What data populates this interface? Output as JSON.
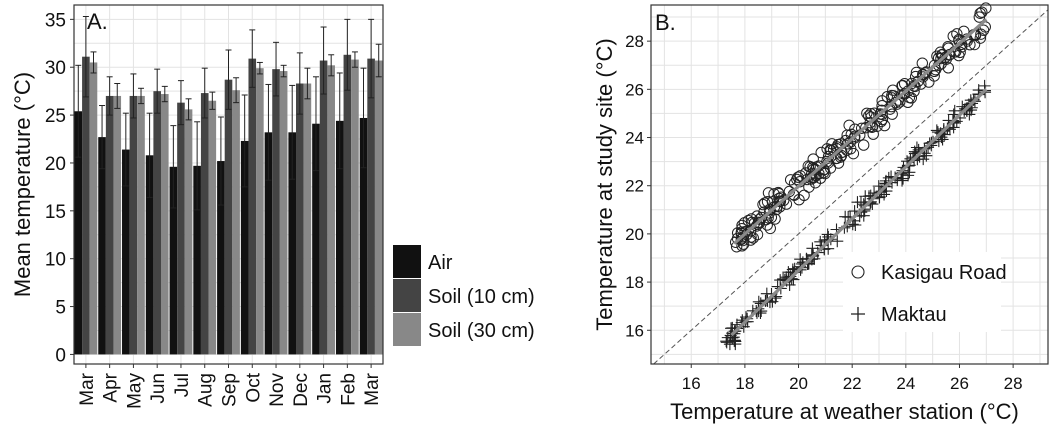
{
  "chart_data": [
    {
      "type": "bar",
      "panel_label": "A.",
      "ylabel": "Mean temperature (°C)",
      "xlabel": "",
      "categories": [
        "Mar",
        "Apr",
        "May",
        "Jun",
        "Jul",
        "Aug",
        "Sep",
        "Oct",
        "Nov",
        "Dec",
        "Jan",
        "Feb",
        "Mar"
      ],
      "ylim": [
        -1,
        36.5
      ],
      "yticks": [
        "0",
        "5",
        "10",
        "15",
        "20",
        "25",
        "30",
        "35"
      ],
      "grid": true,
      "legend_position": "bottom-right",
      "series": [
        {
          "name": "Air",
          "color": "#111111",
          "values": [
            25.4,
            22.7,
            21.4,
            20.8,
            19.6,
            19.7,
            20.2,
            22.3,
            23.2,
            23.2,
            24.1,
            24.4,
            24.7
          ],
          "errors": [
            4.8,
            3.3,
            3.8,
            4.4,
            4.3,
            4.6,
            4.6,
            4.8,
            5.0,
            4.9,
            4.9,
            5.0,
            5.2
          ]
        },
        {
          "name": "Soil (10 cm)",
          "color": "#444444",
          "values": [
            31.1,
            27.0,
            27.0,
            27.5,
            26.3,
            27.3,
            28.7,
            30.9,
            29.8,
            28.3,
            30.7,
            31.3,
            30.9
          ],
          "errors": [
            4.2,
            2.0,
            2.3,
            2.3,
            2.3,
            2.6,
            3.1,
            3.0,
            2.8,
            3.2,
            3.5,
            3.7,
            4.1
          ]
        },
        {
          "name": "Soil (30 cm)",
          "color": "#888888",
          "values": [
            30.5,
            27.0,
            27.0,
            27.2,
            25.6,
            26.5,
            27.6,
            29.9,
            29.6,
            28.3,
            30.2,
            30.8,
            30.7
          ],
          "errors": [
            1.1,
            1.3,
            0.8,
            0.8,
            1.1,
            0.9,
            1.3,
            0.6,
            0.6,
            1.6,
            1.1,
            0.8,
            1.7
          ]
        }
      ]
    },
    {
      "type": "scatter",
      "panel_label": "B.",
      "xlabel": "Temperature at weather station (°C)",
      "ylabel": "Temperature at study site (°C)",
      "xlim": [
        14.5,
        29.3
      ],
      "ylim": [
        14.6,
        29.5
      ],
      "xticks": [
        "16",
        "18",
        "20",
        "22",
        "24",
        "26",
        "28"
      ],
      "yticks": [
        "16",
        "18",
        "20",
        "22",
        "24",
        "26",
        "28"
      ],
      "grid": true,
      "legend_position": "bottom-right",
      "reference_line": "y = x",
      "series": [
        {
          "name": "Kasigau Road",
          "marker": "open-circle",
          "fit": [
            [
              17.6,
              19.6
            ],
            [
              27.0,
              28.9
            ]
          ]
        },
        {
          "name": "Maktau",
          "marker": "plus",
          "fit": [
            [
              17.5,
              15.8
            ],
            [
              27.0,
              26.0
            ]
          ]
        }
      ]
    }
  ]
}
